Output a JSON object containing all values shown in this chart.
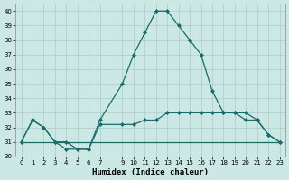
{
  "xlabel": "Humidex (Indice chaleur)",
  "background_color": "#cce8e4",
  "line_color": "#1a6b6b",
  "grid_color": "#aacccc",
  "xlim": [
    -0.5,
    23.5
  ],
  "ylim": [
    30,
    40.5
  ],
  "yticks": [
    30,
    31,
    32,
    33,
    34,
    35,
    36,
    37,
    38,
    39,
    40
  ],
  "xtick_positions": [
    0,
    1,
    2,
    3,
    4,
    5,
    6,
    7,
    9,
    10,
    11,
    12,
    13,
    14,
    15,
    16,
    17,
    18,
    19,
    20,
    21,
    22,
    23
  ],
  "xtick_labels": [
    "0",
    "1",
    "2",
    "3",
    "4",
    "5",
    "6",
    "7",
    "9",
    "10",
    "11",
    "12",
    "13",
    "14",
    "15",
    "16",
    "17",
    "18",
    "19",
    "20",
    "21",
    "22",
    "23"
  ],
  "curve1_x": [
    0,
    1,
    2,
    3,
    4,
    5,
    6,
    7,
    9,
    10,
    11,
    12,
    13,
    14,
    15,
    16,
    17,
    18,
    19,
    20,
    21,
    22,
    23
  ],
  "curve1_y": [
    31,
    32.5,
    32,
    31,
    31,
    30.5,
    30.5,
    32.5,
    35,
    37,
    38.5,
    40,
    40,
    39,
    38,
    37,
    34.5,
    33,
    33,
    33,
    32.5,
    31.5,
    31
  ],
  "curve2_x": [
    0,
    1,
    2,
    3,
    4,
    5,
    6,
    7,
    9,
    10,
    11,
    12,
    13,
    14,
    15,
    16,
    17,
    18,
    19,
    20,
    21,
    22,
    23
  ],
  "curve2_y": [
    31,
    32.5,
    32,
    31,
    30.5,
    30.5,
    30.5,
    32.2,
    32.2,
    32.2,
    32.5,
    32.5,
    33,
    33,
    33,
    33,
    33,
    33,
    33,
    32.5,
    32.5,
    31.5,
    31
  ],
  "curve3_x": [
    0,
    1,
    2,
    3,
    4,
    5,
    6,
    7,
    9,
    10,
    11,
    12,
    13,
    14,
    15,
    16,
    17,
    18,
    19,
    20,
    21,
    22,
    23
  ],
  "curve3_y": [
    31,
    31,
    31,
    31,
    31,
    31,
    31,
    31,
    31,
    31,
    31,
    31,
    31,
    31,
    31,
    31,
    31,
    31,
    31,
    31,
    31,
    31,
    31
  ]
}
